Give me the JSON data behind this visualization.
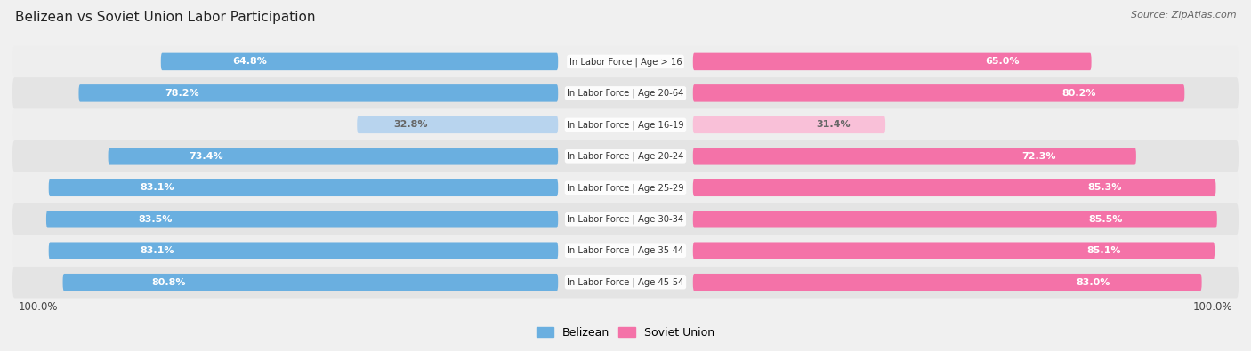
{
  "title": "Belizean vs Soviet Union Labor Participation",
  "source": "Source: ZipAtlas.com",
  "categories": [
    "In Labor Force | Age > 16",
    "In Labor Force | Age 20-64",
    "In Labor Force | Age 16-19",
    "In Labor Force | Age 20-24",
    "In Labor Force | Age 25-29",
    "In Labor Force | Age 30-34",
    "In Labor Force | Age 35-44",
    "In Labor Force | Age 45-54"
  ],
  "belizean_values": [
    64.8,
    78.2,
    32.8,
    73.4,
    83.1,
    83.5,
    83.1,
    80.8
  ],
  "soviet_values": [
    65.0,
    80.2,
    31.4,
    72.3,
    85.3,
    85.5,
    85.1,
    83.0
  ],
  "belizean_color": "#6aafe0",
  "belizean_color_light": "#b8d4ee",
  "soviet_color": "#f472a8",
  "soviet_color_light": "#f9c0d8",
  "row_bg_even": "#eeeeee",
  "row_bg_odd": "#e4e4e4",
  "label_white": "#ffffff",
  "label_dark": "#666666",
  "max_value": 100.0,
  "figsize": [
    14.06,
    3.95
  ],
  "dpi": 100
}
